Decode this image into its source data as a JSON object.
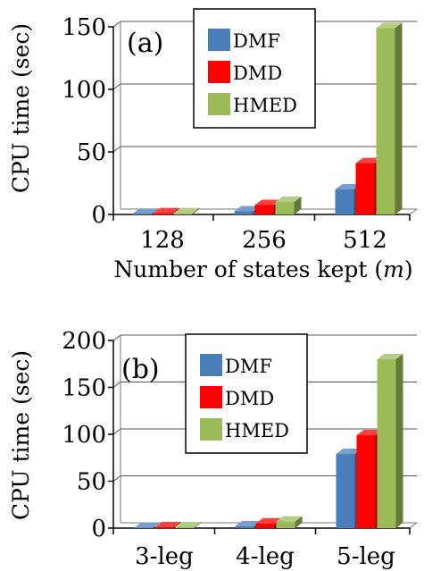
{
  "chart_data": [
    {
      "type": "bar",
      "panel_label": "(a)",
      "categories": [
        "128",
        "256",
        "512"
      ],
      "series": [
        {
          "name": "DMF",
          "values": [
            0.5,
            2.5,
            20
          ]
        },
        {
          "name": "DMD",
          "values": [
            1,
            7.5,
            41
          ]
        },
        {
          "name": "HMED",
          "values": [
            1,
            10,
            149
          ]
        }
      ],
      "ylabel": "CPU time (sec)",
      "xlabel": {
        "text": "Number of states kept (",
        "italic": "m",
        "suffix": ")"
      },
      "yticks": [
        0,
        50,
        100,
        150
      ],
      "ylim": [
        0,
        150
      ],
      "grid": true,
      "legend": "top-left",
      "colors": {
        "DMF": "#4a7ebb",
        "DMD": "#ff0000",
        "HMED": "#9bbb59"
      }
    },
    {
      "type": "bar",
      "panel_label": "(b)",
      "categories": [
        "3-leg",
        "4-leg",
        "5-leg"
      ],
      "series": [
        {
          "name": "DMF",
          "values": [
            0.5,
            2,
            79
          ]
        },
        {
          "name": "DMD",
          "values": [
            1,
            5,
            99
          ]
        },
        {
          "name": "HMED",
          "values": [
            1,
            7,
            180
          ]
        }
      ],
      "ylabel": "CPU time (sec)",
      "yticks": [
        0,
        50,
        100,
        150,
        200
      ],
      "ylim": [
        0,
        200
      ],
      "grid": true,
      "legend": "top-left",
      "colors": {
        "DMF": "#4a7ebb",
        "DMD": "#ff0000",
        "HMED": "#9bbb59"
      }
    }
  ]
}
